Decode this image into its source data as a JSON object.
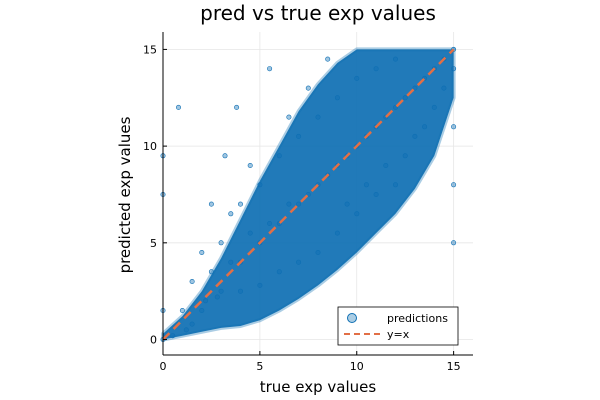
{
  "chart_data": {
    "type": "scatter",
    "title": "pred vs true exp values",
    "xlabel": "true exp values",
    "ylabel": "predicted exp values",
    "xlim": [
      0,
      16
    ],
    "ylim": [
      -0.8,
      15.9
    ],
    "xticks": [
      0,
      5,
      10,
      15
    ],
    "yticks": [
      0,
      5,
      10,
      15
    ],
    "grid": true,
    "legend_position": "bottom-right",
    "series": [
      {
        "name": "predictions",
        "kind": "scatter",
        "color": "#0e6fb3",
        "points_summary": "dense cloud of predicted vs true values clustered around y=x, spread roughly ±4 at mid-range, values clipped to [0, 15]",
        "x": [
          0.0,
          0.0,
          0.0,
          0.0,
          0.5,
          0.8,
          1.0,
          1.2,
          1.5,
          1.5,
          2.0,
          2.0,
          2.2,
          2.5,
          2.5,
          2.8,
          3.0,
          3.0,
          3.2,
          3.5,
          3.5,
          3.8,
          4.0,
          4.0,
          4.0,
          4.5,
          4.5,
          5.0,
          5.0,
          5.0,
          5.5,
          5.5,
          6.0,
          6.0,
          6.0,
          6.5,
          6.5,
          7.0,
          7.0,
          7.0,
          7.5,
          7.5,
          8.0,
          8.0,
          8.0,
          8.5,
          8.5,
          9.0,
          9.0,
          9.0,
          9.5,
          9.5,
          10.0,
          10.0,
          10.0,
          10.5,
          10.5,
          11.0,
          11.0,
          11.0,
          11.5,
          11.5,
          12.0,
          12.0,
          12.0,
          12.5,
          12.5,
          13.0,
          13.0,
          13.5,
          13.5,
          14.0,
          14.0,
          14.5,
          14.5,
          15.0,
          15.0,
          15.0,
          15.0,
          15.0
        ],
        "y": [
          0.0,
          1.5,
          7.5,
          9.5,
          0.2,
          12.0,
          1.5,
          0.5,
          3.0,
          0.8,
          1.5,
          4.5,
          2.0,
          3.5,
          7.0,
          2.2,
          5.0,
          2.5,
          9.5,
          4.0,
          6.5,
          12.0,
          4.0,
          7.0,
          2.5,
          5.5,
          9.0,
          5.0,
          8.0,
          2.8,
          6.0,
          14.0,
          6.0,
          9.5,
          3.5,
          7.0,
          11.5,
          7.0,
          10.5,
          4.0,
          7.5,
          13.0,
          8.0,
          11.5,
          4.5,
          8.5,
          14.5,
          9.0,
          12.5,
          5.5,
          9.5,
          7.0,
          10.0,
          13.5,
          6.5,
          10.5,
          8.0,
          11.0,
          14.0,
          7.5,
          11.5,
          9.0,
          12.0,
          14.5,
          8.0,
          12.5,
          9.5,
          13.0,
          10.5,
          13.5,
          11.0,
          14.0,
          12.0,
          14.5,
          13.0,
          15.0,
          14.0,
          11.0,
          8.0,
          5.0
        ]
      },
      {
        "name": "y=x",
        "kind": "line",
        "color": "#e26f46",
        "x": [
          0,
          15
        ],
        "y": [
          0,
          15
        ]
      }
    ]
  }
}
